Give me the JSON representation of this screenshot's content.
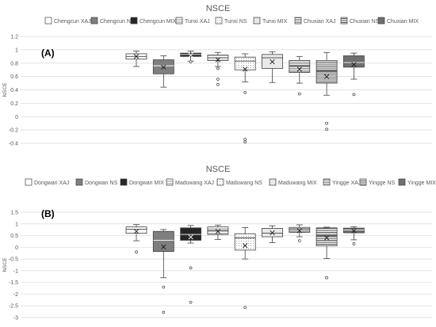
{
  "chart_data": [
    {
      "type": "boxplot",
      "title": "NSCE",
      "panel_label": "(A)",
      "ylabel": "NSCE",
      "ylim": [
        -0.4,
        1.2
      ],
      "yticks": [
        1.2,
        1,
        0.8,
        0.6,
        0.4,
        0.2,
        0,
        -0.2,
        -0.4
      ],
      "ytick_labels": [
        "1.2",
        "1",
        "0.8",
        "0.6",
        "0.4",
        "0.2",
        "0",
        "-0.2",
        "-0.4"
      ],
      "grid": true,
      "legend_position": "top",
      "series": [
        {
          "name": "Chengcun XAJ",
          "pattern": "white",
          "min": 0.75,
          "q1": 0.86,
          "median": 0.9,
          "q3": 0.94,
          "max": 0.98,
          "mean": 0.9,
          "outliers": []
        },
        {
          "name": "Chengcun NS",
          "pattern": "gray",
          "min": 0.44,
          "q1": 0.64,
          "median": 0.76,
          "q3": 0.85,
          "max": 0.91,
          "mean": 0.74,
          "outliers": []
        },
        {
          "name": "Chengcun MIX",
          "pattern": "black",
          "min": 0.83,
          "q1": 0.9,
          "median": 0.93,
          "q3": 0.95,
          "max": 0.98,
          "mean": 0.92,
          "outliers": [
            0.82
          ]
        },
        {
          "name": "Tunxi XAJ",
          "pattern": "hlines",
          "min": 0.75,
          "q1": 0.84,
          "median": 0.88,
          "q3": 0.92,
          "max": 0.96,
          "mean": 0.85,
          "outliers": [
            0.72,
            0.56,
            0.48
          ]
        },
        {
          "name": "Tunxi NS",
          "pattern": "dots",
          "min": 0.52,
          "q1": 0.7,
          "median": 0.83,
          "q3": 0.89,
          "max": 0.94,
          "mean": 0.71,
          "outliers": [
            0.36,
            -0.34,
            -0.38
          ]
        },
        {
          "name": "Tunxi MIX",
          "pattern": "dots-dense",
          "min": 0.51,
          "q1": 0.72,
          "median": 0.88,
          "q3": 0.93,
          "max": 0.97,
          "mean": 0.82,
          "outliers": []
        },
        {
          "name": "Chuxian XAJ",
          "pattern": "hlines-dense",
          "min": 0.5,
          "q1": 0.66,
          "median": 0.76,
          "q3": 0.84,
          "max": 0.9,
          "mean": 0.71,
          "outliers": [
            0.34
          ]
        },
        {
          "name": "Chuxian NS",
          "pattern": "stripes",
          "min": 0.32,
          "q1": 0.5,
          "median": 0.68,
          "q3": 0.84,
          "max": 0.96,
          "mean": 0.6,
          "outliers": [
            -0.1,
            -0.19
          ]
        },
        {
          "name": "Chuxian MIX",
          "pattern": "gray-dark",
          "min": 0.56,
          "q1": 0.74,
          "median": 0.81,
          "q3": 0.91,
          "max": 0.95,
          "mean": 0.78,
          "outliers": [
            0.33
          ]
        }
      ]
    },
    {
      "type": "boxplot",
      "title": "NSCE",
      "panel_label": "(B)",
      "ylabel": "NSCE",
      "ylim": [
        -3,
        1.5
      ],
      "yticks": [
        1.5,
        1,
        0.5,
        0,
        -0.5,
        -1,
        -1.5,
        -2,
        -2.5,
        -3
      ],
      "ytick_labels": [
        "1.5",
        "1",
        "0.5",
        "0",
        "-0.5",
        "-1",
        "-1.5",
        "-2",
        "-2.5",
        "-3"
      ],
      "grid": true,
      "legend_position": "top",
      "series": [
        {
          "name": "Dongwan XAJ",
          "pattern": "white",
          "min": 0.28,
          "q1": 0.6,
          "median": 0.77,
          "q3": 0.87,
          "max": 0.97,
          "mean": 0.68,
          "outliers": [
            -0.2
          ]
        },
        {
          "name": "Dongwan NS",
          "pattern": "gray",
          "min": -1.3,
          "q1": -0.18,
          "median": 0.3,
          "q3": 0.68,
          "max": 0.76,
          "mean": 0.02,
          "outliers": [
            -1.7,
            -2.78
          ]
        },
        {
          "name": "Dongwan MIX",
          "pattern": "black",
          "min": 0.18,
          "q1": 0.3,
          "median": 0.55,
          "q3": 0.83,
          "max": 0.93,
          "mean": 0.44,
          "outliers": [
            -0.88,
            -2.35
          ]
        },
        {
          "name": "Maduwang XAJ",
          "pattern": "hlines",
          "min": 0.33,
          "q1": 0.55,
          "median": 0.72,
          "q3": 0.87,
          "max": 0.95,
          "mean": 0.68,
          "outliers": []
        },
        {
          "name": "Maduwang NS",
          "pattern": "dots",
          "min": -0.5,
          "q1": -0.12,
          "median": 0.4,
          "q3": 0.58,
          "max": 0.84,
          "mean": 0.07,
          "outliers": [
            -2.57
          ]
        },
        {
          "name": "Maduwang MIX",
          "pattern": "dots-dense",
          "min": 0.2,
          "q1": 0.45,
          "median": 0.6,
          "q3": 0.81,
          "max": 0.92,
          "mean": 0.62,
          "outliers": []
        },
        {
          "name": "Yingge XAJ",
          "pattern": "hlines-dense",
          "min": 0.45,
          "q1": 0.64,
          "median": 0.75,
          "q3": 0.85,
          "max": 0.96,
          "mean": 0.71,
          "outliers": [
            0.28
          ]
        },
        {
          "name": "Yingge NS",
          "pattern": "stripes",
          "min": -0.48,
          "q1": 0.06,
          "median": 0.5,
          "q3": 0.83,
          "max": 0.86,
          "mean": 0.4,
          "outliers": [
            -1.3
          ]
        },
        {
          "name": "Yingge MIX",
          "pattern": "gray-dark",
          "min": 0.32,
          "q1": 0.62,
          "median": 0.74,
          "q3": 0.82,
          "max": 0.88,
          "mean": 0.7,
          "outliers": [
            0.15
          ]
        }
      ]
    }
  ]
}
